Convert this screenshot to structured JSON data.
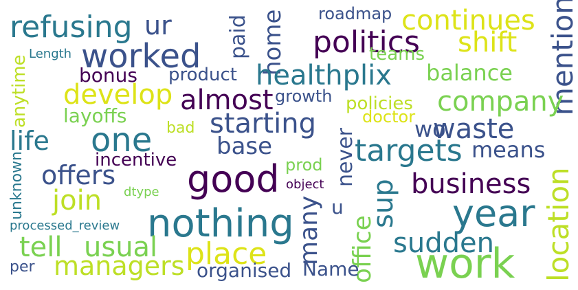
{
  "word_cloud": {
    "words": [
      {
        "text": "refusing",
        "color": "#2a788e",
        "orientation": "horizontal"
      },
      {
        "text": "ur",
        "color": "#3b528b",
        "orientation": "horizontal"
      },
      {
        "text": "worked",
        "color": "#3b528b",
        "orientation": "horizontal"
      },
      {
        "text": "paid",
        "color": "#3b528b",
        "orientation": "vertical"
      },
      {
        "text": "home",
        "color": "#3b528b",
        "orientation": "vertical"
      },
      {
        "text": "roadmap",
        "color": "#3b528b",
        "orientation": "horizontal"
      },
      {
        "text": "continues",
        "color": "#dde318",
        "orientation": "horizontal"
      },
      {
        "text": "politics",
        "color": "#440154",
        "orientation": "horizontal"
      },
      {
        "text": "shift",
        "color": "#dde318",
        "orientation": "horizontal"
      },
      {
        "text": "mention",
        "color": "#3b528b",
        "orientation": "vertical"
      },
      {
        "text": "teams",
        "color": "#7ad151",
        "orientation": "horizontal"
      },
      {
        "text": "Length",
        "color": "#2a788e",
        "orientation": "horizontal"
      },
      {
        "text": "anytime",
        "color": "#bddf26",
        "orientation": "vertical"
      },
      {
        "text": "bonus",
        "color": "#440154",
        "orientation": "horizontal"
      },
      {
        "text": "product",
        "color": "#3b528b",
        "orientation": "horizontal"
      },
      {
        "text": "healthplix",
        "color": "#2a788e",
        "orientation": "horizontal"
      },
      {
        "text": "balance",
        "color": "#7ad151",
        "orientation": "horizontal"
      },
      {
        "text": "develop",
        "color": "#dde318",
        "orientation": "horizontal"
      },
      {
        "text": "almost",
        "color": "#440154",
        "orientation": "horizontal"
      },
      {
        "text": "growth",
        "color": "#3b528b",
        "orientation": "horizontal"
      },
      {
        "text": "company",
        "color": "#7ad151",
        "orientation": "horizontal"
      },
      {
        "text": "policies",
        "color": "#bddf26",
        "orientation": "horizontal"
      },
      {
        "text": "layoffs",
        "color": "#7ad151",
        "orientation": "horizontal"
      },
      {
        "text": "doctor",
        "color": "#dde318",
        "orientation": "horizontal"
      },
      {
        "text": "starting",
        "color": "#3b528b",
        "orientation": "horizontal"
      },
      {
        "text": "wo",
        "color": "#3b528b",
        "orientation": "horizontal"
      },
      {
        "text": "waste",
        "color": "#3b528b",
        "orientation": "horizontal"
      },
      {
        "text": "life",
        "color": "#2a788e",
        "orientation": "horizontal"
      },
      {
        "text": "one",
        "color": "#2a788e",
        "orientation": "horizontal"
      },
      {
        "text": "bad",
        "color": "#bddf26",
        "orientation": "horizontal"
      },
      {
        "text": "base",
        "color": "#3b528b",
        "orientation": "horizontal"
      },
      {
        "text": "targets",
        "color": "#2a788e",
        "orientation": "horizontal"
      },
      {
        "text": "means",
        "color": "#3b528b",
        "orientation": "horizontal"
      },
      {
        "text": "unknown",
        "color": "#2a788e",
        "orientation": "vertical"
      },
      {
        "text": "incentive",
        "color": "#440154",
        "orientation": "horizontal"
      },
      {
        "text": "never",
        "color": "#3b528b",
        "orientation": "vertical"
      },
      {
        "text": "offers",
        "color": "#3b528b",
        "orientation": "horizontal"
      },
      {
        "text": "good",
        "color": "#440154",
        "orientation": "horizontal"
      },
      {
        "text": "prod",
        "color": "#7ad151",
        "orientation": "horizontal"
      },
      {
        "text": "business",
        "color": "#440154",
        "orientation": "horizontal"
      },
      {
        "text": "location",
        "color": "#bddf26",
        "orientation": "vertical"
      },
      {
        "text": "join",
        "color": "#bddf26",
        "orientation": "horizontal"
      },
      {
        "text": "dtype",
        "color": "#7ad151",
        "orientation": "horizontal"
      },
      {
        "text": "object",
        "color": "#440154",
        "orientation": "horizontal"
      },
      {
        "text": "year",
        "color": "#2a788e",
        "orientation": "horizontal"
      },
      {
        "text": "many",
        "color": "#3b528b",
        "orientation": "vertical"
      },
      {
        "text": "u",
        "color": "#3b528b",
        "orientation": "horizontal"
      },
      {
        "text": "office",
        "color": "#7ad151",
        "orientation": "vertical"
      },
      {
        "text": "sup",
        "color": "#2a788e",
        "orientation": "vertical"
      },
      {
        "text": "processed_review",
        "color": "#2a788e",
        "orientation": "horizontal"
      },
      {
        "text": "nothing",
        "color": "#2a788e",
        "orientation": "horizontal"
      },
      {
        "text": "tell",
        "color": "#7ad151",
        "orientation": "horizontal"
      },
      {
        "text": "usual",
        "color": "#7ad151",
        "orientation": "horizontal"
      },
      {
        "text": "place",
        "color": "#dde318",
        "orientation": "horizontal"
      },
      {
        "text": "sudden",
        "color": "#2a788e",
        "orientation": "horizontal"
      },
      {
        "text": "managers",
        "color": "#bddf26",
        "orientation": "horizontal"
      },
      {
        "text": "work",
        "color": "#7ad151",
        "orientation": "horizontal"
      },
      {
        "text": "per",
        "color": "#3b528b",
        "orientation": "horizontal"
      },
      {
        "text": "organised",
        "color": "#3b528b",
        "orientation": "horizontal"
      },
      {
        "text": "Name",
        "color": "#3b528b",
        "orientation": "horizontal"
      }
    ]
  }
}
